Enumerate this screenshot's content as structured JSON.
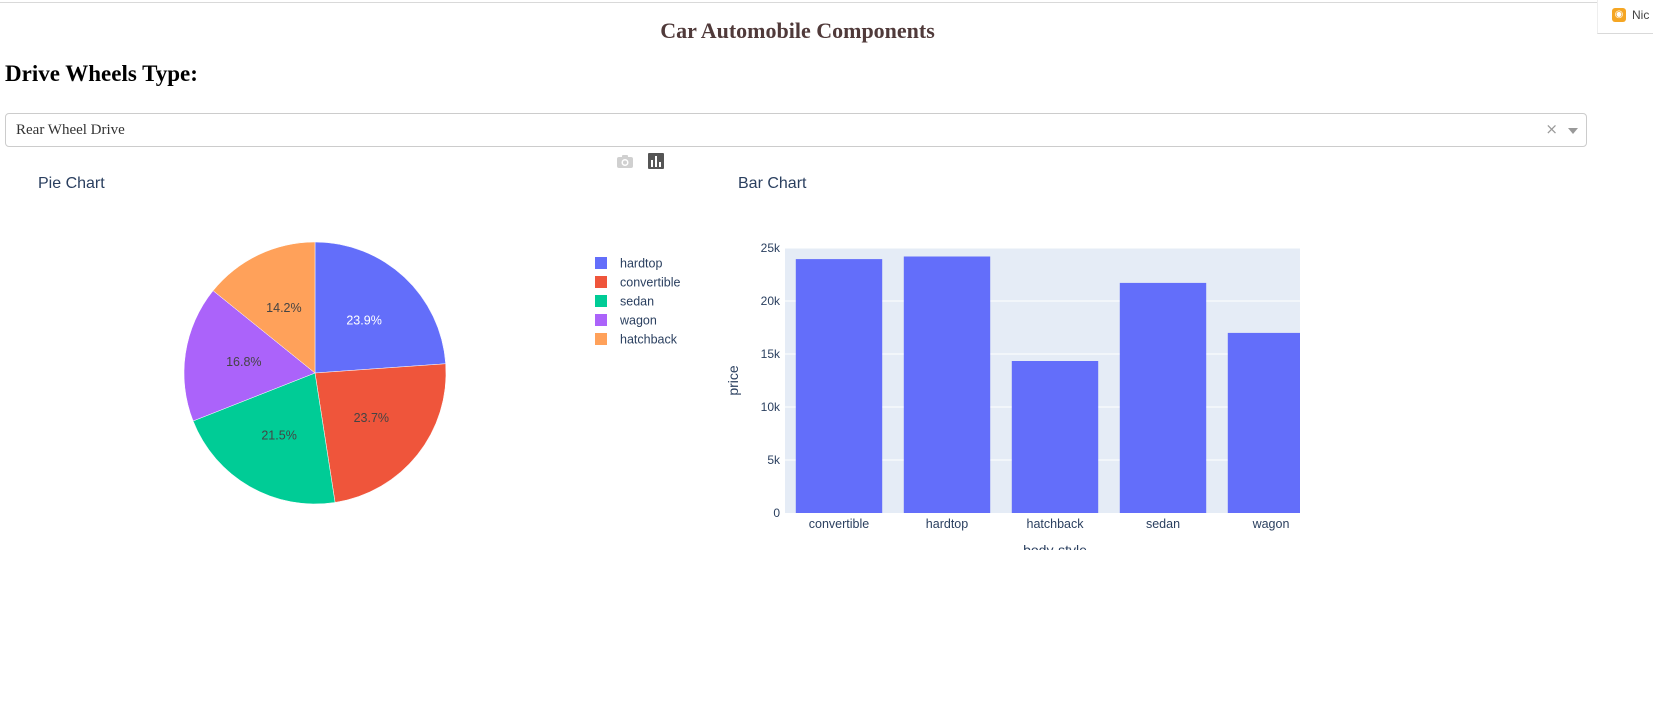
{
  "header": {
    "title": "Car Automobile Components"
  },
  "extension": {
    "label": "Nic"
  },
  "form": {
    "label": "Drive Wheels Type:",
    "selected": "Rear Wheel Drive",
    "clear_symbol": "×"
  },
  "colors": {
    "blue": "#636efa",
    "red": "#ef553b",
    "green": "#00cc96",
    "purple": "#ab63fa",
    "orange": "#ffa15a",
    "plot_bg": "#e5ecf6",
    "text": "#2a3f5f"
  },
  "icons": {
    "modebar": [
      "camera-icon",
      "bar-chart-icon"
    ]
  },
  "chart_data": [
    {
      "type": "pie",
      "title": "Pie Chart",
      "labels": [
        "hardtop",
        "convertible",
        "sedan",
        "wagon",
        "hatchback"
      ],
      "values": [
        23.9,
        23.7,
        21.5,
        16.8,
        14.2
      ],
      "text": [
        "23.9%",
        "23.7%",
        "21.5%",
        "16.8%",
        "14.2%"
      ],
      "legend": "right"
    },
    {
      "type": "bar",
      "title": "Bar Chart",
      "categories": [
        "convertible",
        "hardtop",
        "hatchback",
        "sedan",
        "wagon"
      ],
      "values": [
        23949,
        24202,
        14338,
        21712,
        16994
      ],
      "xlabel": "body-style",
      "ylabel": "price",
      "ylim": [
        0,
        25000
      ],
      "yticks": [
        0,
        5000,
        10000,
        15000,
        20000,
        25000
      ],
      "ytick_labels": [
        "0",
        "5k",
        "10k",
        "15k",
        "20k",
        "25k"
      ],
      "grid": true
    }
  ]
}
